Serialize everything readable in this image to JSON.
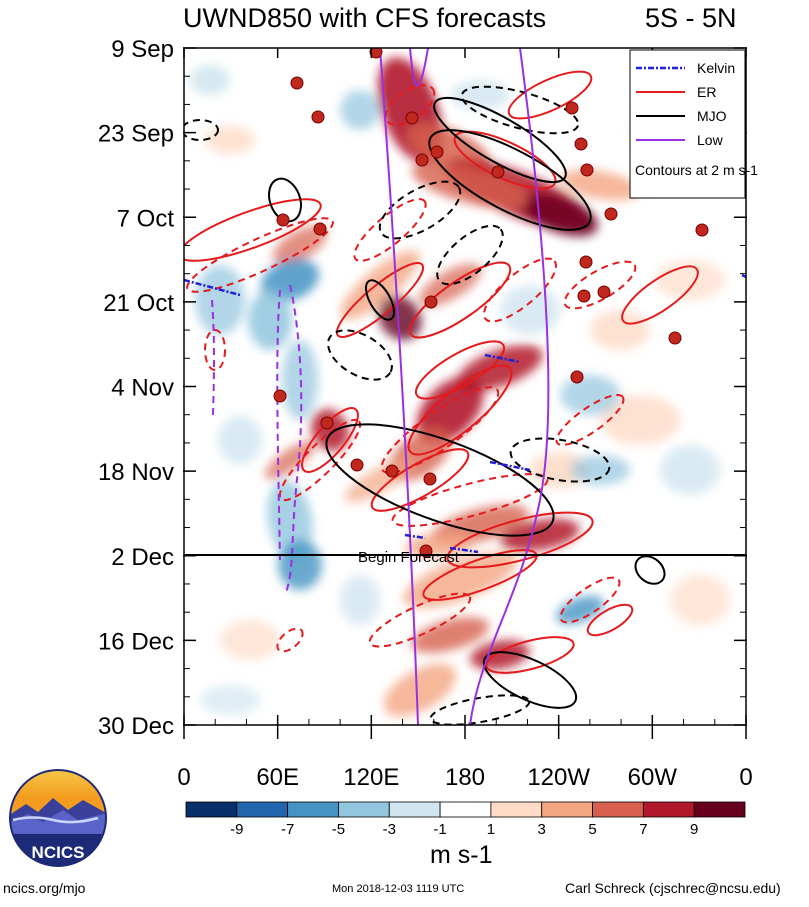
{
  "chart_data": {
    "type": "heatmap",
    "title": "UWND850 with CFS forecasts",
    "region": "5S - 5N",
    "y_ticks": [
      "9 Sep",
      "23 Sep",
      "7 Oct",
      "21 Oct",
      "4 Nov",
      "18 Nov",
      "2 Dec",
      "16 Dec",
      "30 Dec"
    ],
    "x_ticks": [
      "0",
      "60E",
      "120E",
      "180",
      "120W",
      "60W",
      "0"
    ],
    "x_range_deg_east": [
      0,
      360
    ],
    "colorbar": {
      "labels": [
        "-9",
        "-7",
        "-5",
        "-3",
        "-1",
        "1",
        "3",
        "5",
        "7",
        "9"
      ],
      "colors": [
        "#08306b",
        "#2166ac",
        "#4393c3",
        "#92c5de",
        "#d1e5f0",
        "#ffffff",
        "#fddbc7",
        "#f4a582",
        "#d6604d",
        "#b2182b",
        "#67001f"
      ],
      "unit": "m s-1"
    },
    "legend": {
      "position": "top-right",
      "entries": [
        {
          "name": "Kelvin",
          "color": "#1f1fdc",
          "style": "dash-dot"
        },
        {
          "name": "ER",
          "color": "#e41a1c",
          "style": "solid"
        },
        {
          "name": "MJO",
          "color": "#000000",
          "style": "solid"
        },
        {
          "name": "Low",
          "color": "#9b30e0",
          "style": "solid"
        }
      ],
      "note": "Contours at 2 m s-1"
    },
    "forecast_marker": {
      "label": "Begin Forecast",
      "date": "2 Dec"
    }
  },
  "logo": {
    "text": "NCICS"
  },
  "footer": {
    "url": "ncics.org/mjo",
    "timestamp": "Mon 2018-12-03 1119 UTC",
    "author": "Carl Schreck (cjschrec@ncsu.edu)"
  }
}
